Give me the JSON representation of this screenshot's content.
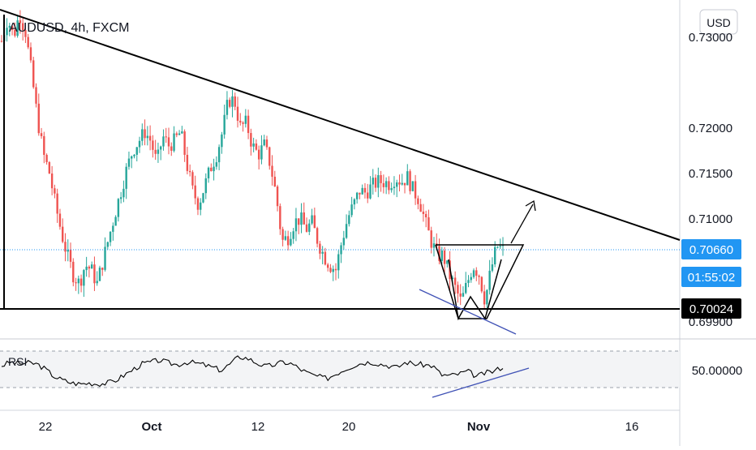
{
  "chart_data": {
    "type": "candlestick",
    "title": "AUDUSD, 4h, FXCM",
    "currency_label": "USD",
    "colors": {
      "up": "#26a69a",
      "down": "#ef5350",
      "price_line": "#2196f3",
      "rsi_line": "#000000"
    },
    "price_axis": {
      "range": [
        0.6985,
        0.7345
      ],
      "ticks": [
        {
          "value": 0.73,
          "label": "0.73000"
        },
        {
          "value": 0.72,
          "label": "0.72000"
        },
        {
          "value": 0.715,
          "label": "0.71500"
        },
        {
          "value": 0.71,
          "label": "0.71000"
        },
        {
          "value": 0.699,
          "label": "0.69900"
        }
      ]
    },
    "badges": {
      "last_price": "0.70660",
      "countdown": "01:55:02",
      "support": "0.70024"
    },
    "time_axis": {
      "labels": [
        {
          "label": "22",
          "bold": false
        },
        {
          "label": "Oct",
          "bold": true
        },
        {
          "label": "12",
          "bold": false
        },
        {
          "label": "20",
          "bold": false
        },
        {
          "label": "Nov",
          "bold": true
        },
        {
          "label": "16",
          "bold": false
        }
      ]
    },
    "path": [
      0.7295,
      0.732,
      0.73,
      0.7325,
      0.7305,
      0.726,
      0.721,
      0.717,
      0.715,
      0.7115,
      0.7085,
      0.706,
      0.704,
      0.703,
      0.705,
      0.7045,
      0.703,
      0.7055,
      0.708,
      0.7105,
      0.713,
      0.7155,
      0.7175,
      0.7185,
      0.7195,
      0.7185,
      0.716,
      0.719,
      0.718,
      0.7185,
      0.7195,
      0.716,
      0.713,
      0.7115,
      0.7135,
      0.7155,
      0.717,
      0.7195,
      0.723,
      0.723,
      0.72,
      0.7205,
      0.718,
      0.717,
      0.718,
      0.716,
      0.7125,
      0.7075,
      0.708,
      0.7095,
      0.71,
      0.7088,
      0.7095,
      0.7075,
      0.706,
      0.705,
      0.7045,
      0.7075,
      0.71,
      0.7115,
      0.713,
      0.7128,
      0.7135,
      0.714,
      0.714,
      0.7138,
      0.7145,
      0.714,
      0.7145,
      0.713,
      0.712,
      0.7095,
      0.7075,
      0.706,
      0.706,
      0.704,
      0.7025,
      0.701,
      0.703,
      0.705,
      0.704,
      0.7012,
      0.7045,
      0.707,
      0.7066
    ],
    "rsi_path": [
      54,
      58,
      56,
      57,
      56,
      50,
      42,
      38,
      35,
      34,
      35,
      34,
      35,
      38,
      44,
      50,
      56,
      58,
      60,
      57,
      55,
      58,
      57,
      55,
      52,
      49,
      56,
      64,
      62,
      57,
      53,
      55,
      58,
      56,
      50,
      45,
      42,
      40,
      45,
      50,
      54,
      57,
      58,
      56,
      54,
      52,
      58,
      56,
      55,
      54,
      44,
      43,
      45,
      48,
      42,
      46,
      48,
      53
    ],
    "rsi": {
      "label": "RSI",
      "range": [
        30,
        72
      ],
      "upper_band": 70,
      "lower_band": 30,
      "ticks": [
        {
          "value": 50,
          "label": "50.00000"
        }
      ]
    },
    "annotations": {
      "descending_trendline": {
        "from": 0.734,
        "to": 0.7072
      },
      "support_line": 0.70024,
      "inverse_head_shoulders": "triangle apex with projected breakout arrow"
    }
  }
}
